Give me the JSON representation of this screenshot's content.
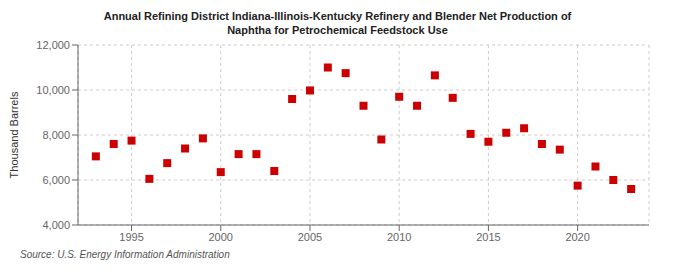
{
  "chart_data": {
    "type": "scatter",
    "title": "Annual Refining District Indiana-Illinois-Kentucky Refinery and Blender Net Production of\nNaphtha for Petrochemical Feedstock Use",
    "ylabel": "Thousand Barrels",
    "annotations": [
      "Source: U.S. Energy Information Administration"
    ],
    "x": [
      1993,
      1994,
      1995,
      1996,
      1997,
      1998,
      1999,
      2000,
      2001,
      2002,
      2003,
      2004,
      2005,
      2006,
      2007,
      2008,
      2009,
      2010,
      2011,
      2012,
      2013,
      2014,
      2015,
      2016,
      2017,
      2018,
      2019,
      2020,
      2021,
      2022,
      2023
    ],
    "values": [
      7050,
      7600,
      7750,
      6050,
      6750,
      7400,
      7850,
      6350,
      7150,
      7150,
      6400,
      9600,
      9980,
      11000,
      10750,
      9300,
      7800,
      9700,
      9300,
      10650,
      9650,
      8050,
      7700,
      8100,
      8300,
      7600,
      7350,
      5750,
      6600,
      6000,
      5600
    ],
    "color": "#cc0000",
    "marker": "square",
    "xlim": [
      1992,
      2024
    ],
    "xticks": [
      1995,
      2000,
      2005,
      2010,
      2015,
      2020
    ],
    "ylim": [
      4000,
      12000
    ],
    "yticks": [
      {
        "value": 4000,
        "label": "4,000"
      },
      {
        "value": 6000,
        "label": "6,000"
      },
      {
        "value": 8000,
        "label": "8,000"
      },
      {
        "value": 10000,
        "label": "10,000"
      },
      {
        "value": 12000,
        "label": "12,000"
      }
    ],
    "grid": true
  }
}
